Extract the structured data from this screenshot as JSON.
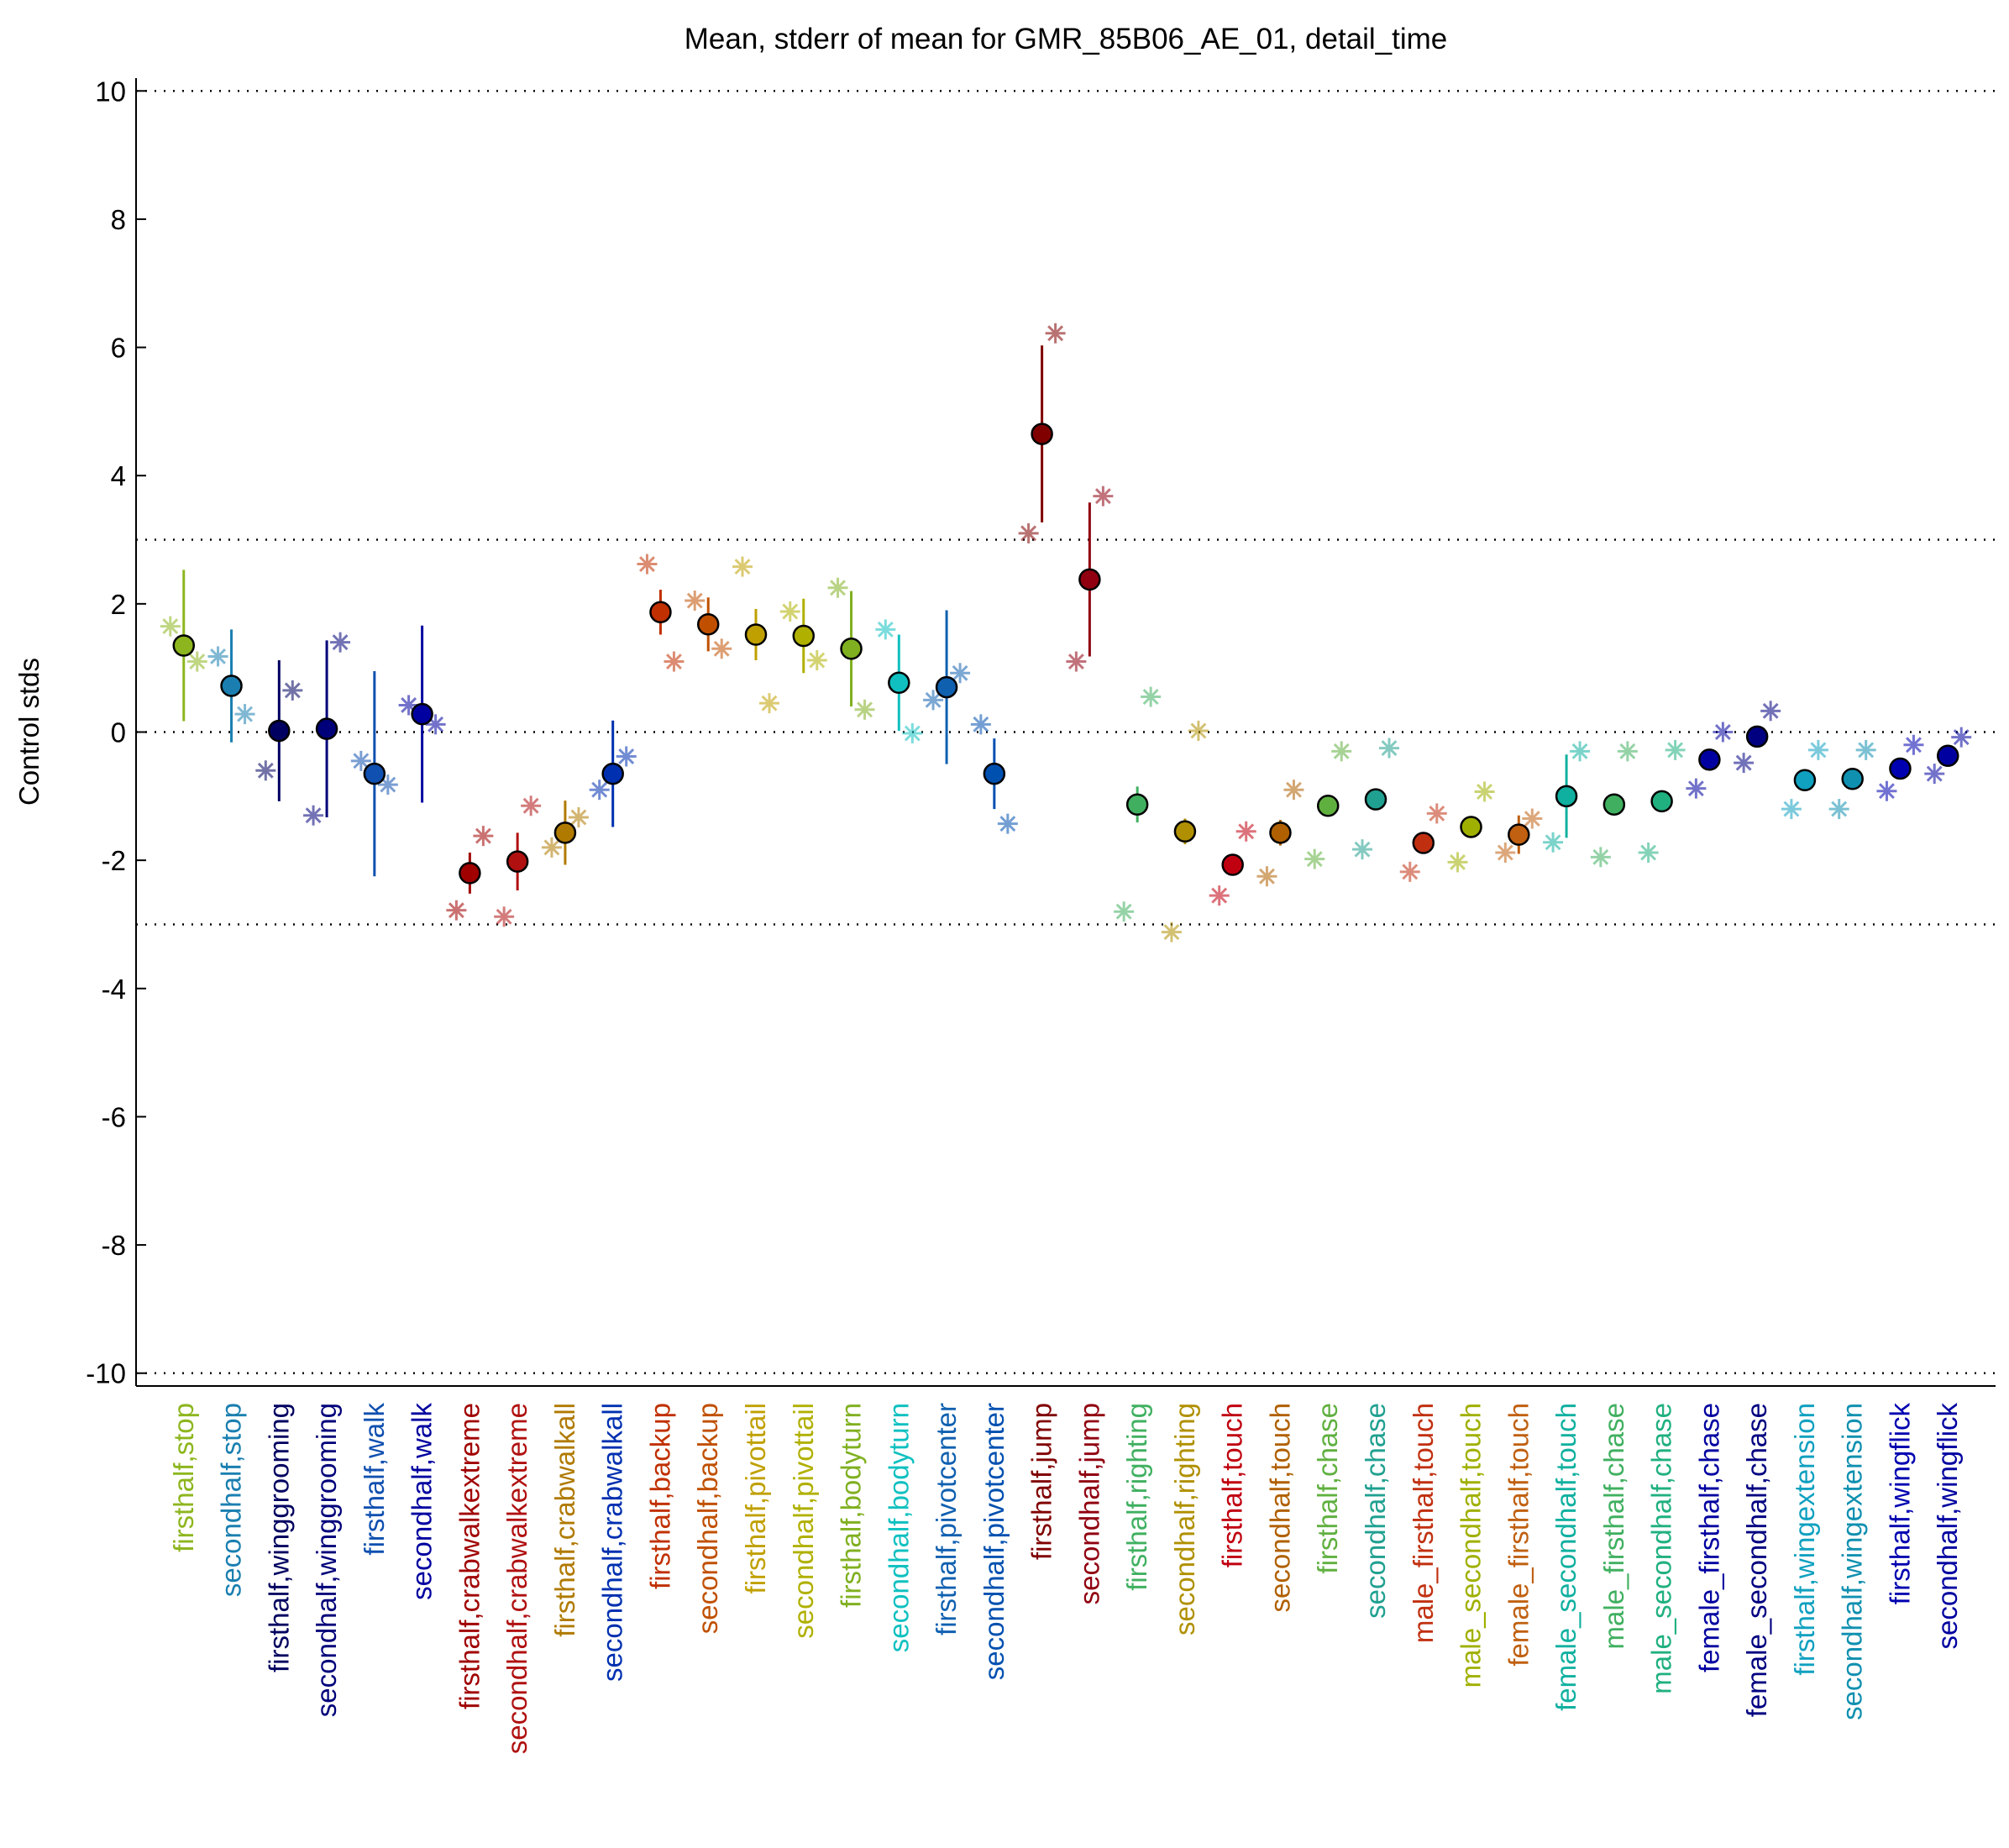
{
  "chart_data": {
    "type": "errorbar",
    "title": "Mean, stderr of mean for GMR_85B06_AE_01, detail_time",
    "ylabel": "Control stds",
    "categories": [
      "firsthalf,stop",
      "secondhalf,stop",
      "firsthalf,winggrooming",
      "secondhalf,winggrooming",
      "firsthalf,walk",
      "secondhalf,walk",
      "firsthalf,crabwalkextreme",
      "secondhalf,crabwalkextreme",
      "firsthalf,crabwalkall",
      "secondhalf,crabwalkall",
      "firsthalf,backup",
      "secondhalf,backup",
      "firsthalf,pivottail",
      "secondhalf,pivottail",
      "firsthalf,bodyturn",
      "secondhalf,bodyturn",
      "firsthalf,pivotcenter",
      "secondhalf,pivotcenter",
      "firsthalf,jump",
      "secondhalf,jump",
      "firsthalf,righting",
      "secondhalf,righting",
      "firsthalf,touch",
      "secondhalf,touch",
      "firsthalf,chase",
      "secondhalf,chase",
      "male_firsthalf,touch",
      "male_secondhalf,touch",
      "female_firsthalf,touch",
      "female_secondhalf,touch",
      "male_firsthalf,chase",
      "male_secondhalf,chase",
      "female_firsthalf,chase",
      "female_secondhalf,chase",
      "firsthalf,wingextension",
      "secondhalf,wingextension",
      "firsthalf,wingflick",
      "secondhalf,wingflick"
    ],
    "means": [
      1.35,
      0.72,
      0.02,
      0.05,
      -0.65,
      0.28,
      -2.2,
      -2.02,
      -1.57,
      -0.65,
      1.87,
      1.68,
      1.52,
      1.5,
      1.3,
      0.77,
      0.7,
      -0.65,
      4.65,
      2.38,
      -1.13,
      -1.55,
      -2.07,
      -1.57,
      -1.15,
      -1.05,
      -1.73,
      -1.48,
      -1.6,
      -1.0,
      -1.13,
      -1.08,
      -0.43,
      -0.07,
      -0.75,
      -0.73,
      -0.57,
      -0.37
    ],
    "errors": [
      1.18,
      0.88,
      1.1,
      1.38,
      1.6,
      1.38,
      0.32,
      0.45,
      0.5,
      0.83,
      0.35,
      0.42,
      0.4,
      0.58,
      0.9,
      0.75,
      1.2,
      0.55,
      1.38,
      1.2,
      0.28,
      0.2,
      0.1,
      0.2,
      0.05,
      0.05,
      0.1,
      0.1,
      0.3,
      0.65,
      0.05,
      0.05,
      0.05,
      0.1,
      0.05,
      0.05,
      0.05,
      0.05
    ],
    "left_points": [
      1.65,
      1.18,
      -0.6,
      -1.3,
      -0.45,
      0.42,
      -2.78,
      -2.88,
      -1.8,
      -0.9,
      2.62,
      2.05,
      2.58,
      1.88,
      2.25,
      1.6,
      0.5,
      0.12,
      3.1,
      1.1,
      -2.8,
      -3.12,
      -2.55,
      -2.25,
      -1.98,
      -1.83,
      -2.18,
      -2.03,
      -1.88,
      -1.72,
      -1.95,
      -1.88,
      -0.88,
      -0.48,
      -1.2,
      -1.2,
      -0.92,
      -0.65
    ],
    "right_points": [
      1.1,
      0.28,
      0.65,
      1.4,
      -0.82,
      0.12,
      -1.62,
      -1.15,
      -1.33,
      -0.38,
      1.1,
      1.3,
      0.45,
      1.12,
      0.35,
      -0.02,
      0.92,
      -1.43,
      6.22,
      3.68,
      0.55,
      0.02,
      -1.55,
      -0.9,
      -0.3,
      -0.25,
      -1.27,
      -0.93,
      -1.35,
      -0.3,
      -0.3,
      -0.28,
      0.0,
      0.33,
      -0.28,
      -0.28,
      -0.2,
      -0.08
    ],
    "colors": [
      "#8db61e",
      "#1a7fb0",
      "#000060",
      "#00007a",
      "#1050b0",
      "#0000a0",
      "#a00000",
      "#b01010",
      "#b07a00",
      "#0030b0",
      "#c03000",
      "#c05000",
      "#c0a000",
      "#b0b000",
      "#80b020",
      "#10c0c0",
      "#1060b0",
      "#0050b0",
      "#800000",
      "#900010",
      "#40b060",
      "#b09000",
      "#c00010",
      "#b06000",
      "#60b040",
      "#20a090",
      "#c03010",
      "#a0b000",
      "#c06010",
      "#10b0a0",
      "#40b060",
      "#20b080",
      "#0000a0",
      "#000080",
      "#10a0c0",
      "#1090b0",
      "#0000b0",
      "#0000a0"
    ],
    "xlim": [
      0,
      39
    ],
    "ylim": [
      -10.2,
      10.2
    ],
    "yticks": [
      -10,
      -8,
      -6,
      -4,
      -2,
      0,
      2,
      4,
      6,
      8,
      10
    ],
    "hlines": [
      -10,
      -3,
      0,
      3,
      10
    ]
  }
}
